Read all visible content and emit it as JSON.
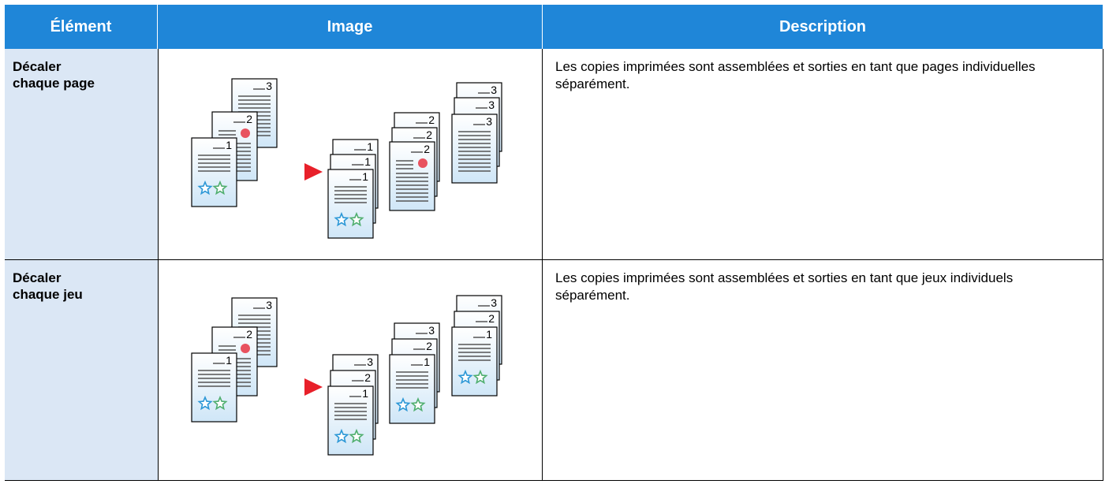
{
  "header": {
    "columns": [
      "Élément",
      "Image",
      "Description"
    ]
  },
  "table": {
    "rows": [
      [
        "Décaler chaque page",
        "Les copies imprimées sont assemblées et sorties en tant que pages individuelles séparément."
      ],
      [
        "Décaler chaque jeu",
        "Les copies imprimées sont assemblées et sorties en tant que jeux individuels séparément."
      ]
    ]
  },
  "illustration": {
    "page_numbers": [
      "1",
      "2",
      "3"
    ]
  }
}
